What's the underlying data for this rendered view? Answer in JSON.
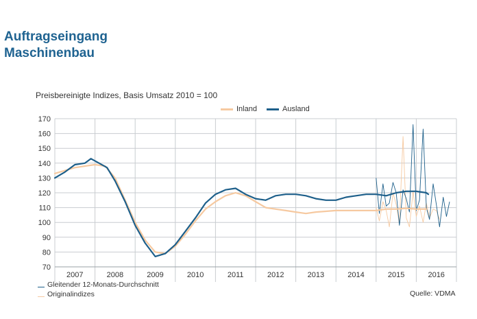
{
  "title_line1": "Auftragseingang",
  "title_line2": "Maschinenbau",
  "subtitle": "Preisbereinigte Indizes, Basis Umsatz 2010 = 100",
  "source": "Quelle: VDMA",
  "legend_bottom": {
    "smoothed": "Gleitender 12-Monats-Durchschnitt",
    "original": "Originalindizes"
  },
  "colors": {
    "inland": "#f6c9a0",
    "ausland": "#1d5f8a",
    "grid": "#c8ccd0"
  },
  "chart_data": {
    "type": "line",
    "title": "Preisbereinigte Indizes, Basis Umsatz 2010 = 100",
    "xlabel": "",
    "ylabel": "",
    "x_categories": [
      "2007",
      "2008",
      "2009",
      "2010",
      "2011",
      "2012",
      "2013",
      "2014",
      "2015",
      "2016"
    ],
    "ylim": [
      70,
      170
    ],
    "yticks": [
      70,
      80,
      90,
      100,
      110,
      120,
      130,
      140,
      150,
      160,
      170
    ],
    "grid": true,
    "legend": "top",
    "smoothed_series": [
      {
        "name": "Inland",
        "color": "#f6c9a0",
        "points": [
          [
            2006.5,
            133
          ],
          [
            2006.75,
            135
          ],
          [
            2007.0,
            137
          ],
          [
            2007.25,
            138
          ],
          [
            2007.5,
            139
          ],
          [
            2007.75,
            138
          ],
          [
            2008.0,
            130
          ],
          [
            2008.25,
            115
          ],
          [
            2008.5,
            100
          ],
          [
            2008.75,
            88
          ],
          [
            2009.0,
            80
          ],
          [
            2009.25,
            79
          ],
          [
            2009.5,
            84
          ],
          [
            2009.75,
            92
          ],
          [
            2010.0,
            101
          ],
          [
            2010.25,
            109
          ],
          [
            2010.5,
            114
          ],
          [
            2010.75,
            118
          ],
          [
            2011.0,
            120
          ],
          [
            2011.25,
            118
          ],
          [
            2011.5,
            114
          ],
          [
            2011.75,
            110
          ],
          [
            2012.0,
            109
          ],
          [
            2012.25,
            108
          ],
          [
            2012.5,
            107
          ],
          [
            2012.75,
            106
          ],
          [
            2013.0,
            107
          ],
          [
            2013.25,
            107.5
          ],
          [
            2013.5,
            108
          ],
          [
            2013.75,
            108
          ],
          [
            2014.0,
            108
          ],
          [
            2014.25,
            108
          ],
          [
            2014.5,
            108
          ],
          [
            2014.75,
            109
          ],
          [
            2015.0,
            109
          ],
          [
            2015.25,
            109.5
          ],
          [
            2015.5,
            109
          ],
          [
            2015.75,
            109
          ]
        ]
      },
      {
        "name": "Ausland",
        "color": "#1d5f8a",
        "points": [
          [
            2006.5,
            130
          ],
          [
            2006.75,
            134
          ],
          [
            2007.0,
            139
          ],
          [
            2007.25,
            140
          ],
          [
            2007.4,
            143
          ],
          [
            2007.6,
            140
          ],
          [
            2007.8,
            137
          ],
          [
            2008.0,
            128
          ],
          [
            2008.25,
            114
          ],
          [
            2008.5,
            98
          ],
          [
            2008.75,
            86
          ],
          [
            2009.0,
            77
          ],
          [
            2009.25,
            79
          ],
          [
            2009.5,
            85
          ],
          [
            2009.75,
            94
          ],
          [
            2010.0,
            103
          ],
          [
            2010.25,
            113
          ],
          [
            2010.5,
            119
          ],
          [
            2010.75,
            122
          ],
          [
            2011.0,
            123
          ],
          [
            2011.25,
            119
          ],
          [
            2011.5,
            116
          ],
          [
            2011.75,
            115
          ],
          [
            2012.0,
            118
          ],
          [
            2012.25,
            119
          ],
          [
            2012.5,
            119
          ],
          [
            2012.75,
            118
          ],
          [
            2013.0,
            116
          ],
          [
            2013.25,
            115
          ],
          [
            2013.5,
            115
          ],
          [
            2013.75,
            117
          ],
          [
            2014.0,
            118
          ],
          [
            2014.25,
            119
          ],
          [
            2014.5,
            119
          ],
          [
            2014.75,
            118
          ],
          [
            2015.0,
            120
          ],
          [
            2015.25,
            121
          ],
          [
            2015.5,
            121
          ],
          [
            2015.75,
            120
          ],
          [
            2015.8,
            119
          ]
        ]
      }
    ],
    "original_series": [
      {
        "name": "Inland",
        "color": "#f6c9a0",
        "points": [
          [
            2014.5,
            110
          ],
          [
            2014.58,
            101
          ],
          [
            2014.67,
            114
          ],
          [
            2014.75,
            108
          ],
          [
            2014.83,
            97
          ],
          [
            2014.92,
            120
          ],
          [
            2015.0,
            112
          ],
          [
            2015.08,
            99
          ],
          [
            2015.17,
            158
          ],
          [
            2015.25,
            103
          ],
          [
            2015.33,
            97
          ],
          [
            2015.42,
            121
          ],
          [
            2015.5,
            104
          ],
          [
            2015.58,
            111
          ],
          [
            2015.67,
            100
          ],
          [
            2015.75,
            113
          ],
          [
            2015.83,
            103
          ],
          [
            2015.92,
            109
          ],
          [
            2016.0,
            108
          ],
          [
            2016.08,
            102
          ]
        ]
      },
      {
        "name": "Ausland",
        "color": "#1d5f8a",
        "points": [
          [
            2014.5,
            130
          ],
          [
            2014.58,
            106
          ],
          [
            2014.67,
            126
          ],
          [
            2014.75,
            111
          ],
          [
            2014.83,
            113
          ],
          [
            2014.92,
            127
          ],
          [
            2015.0,
            120
          ],
          [
            2015.08,
            98
          ],
          [
            2015.17,
            122
          ],
          [
            2015.25,
            116
          ],
          [
            2015.33,
            107
          ],
          [
            2015.42,
            166
          ],
          [
            2015.5,
            108
          ],
          [
            2015.58,
            115
          ],
          [
            2015.67,
            163
          ],
          [
            2015.75,
            110
          ],
          [
            2015.83,
            102
          ],
          [
            2015.92,
            126
          ],
          [
            2016.0,
            112
          ],
          [
            2016.08,
            97
          ],
          [
            2016.17,
            117
          ],
          [
            2016.25,
            104
          ],
          [
            2016.33,
            114
          ]
        ]
      }
    ]
  }
}
